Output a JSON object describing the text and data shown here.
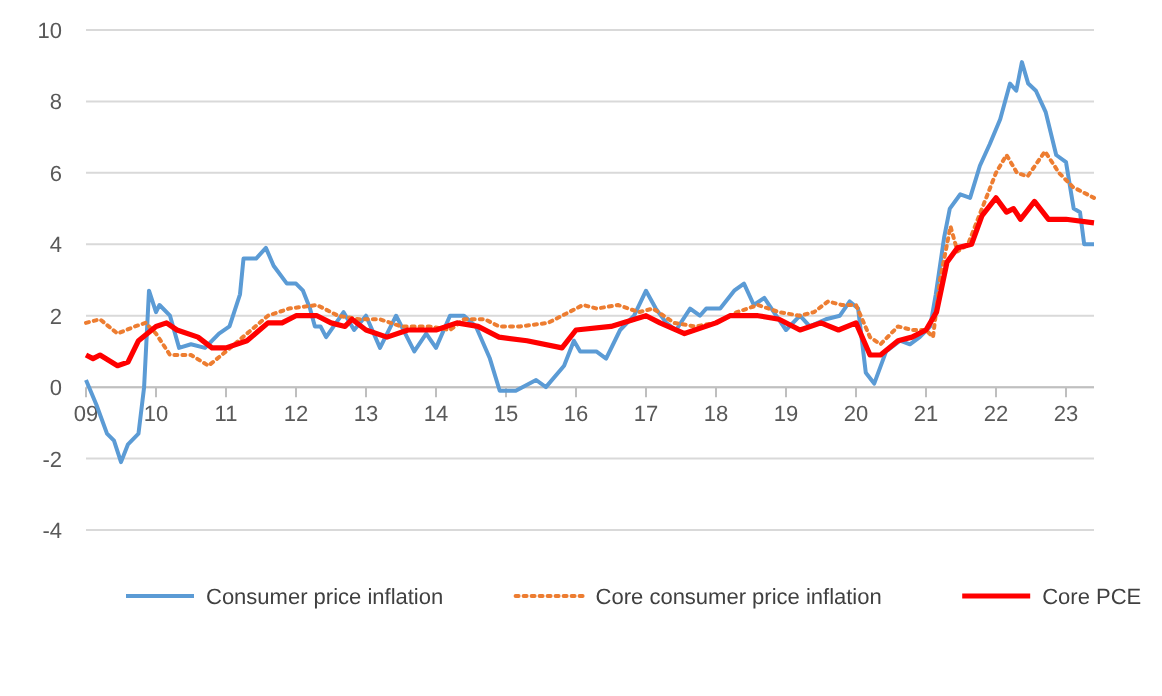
{
  "chart_data": {
    "type": "line",
    "xlim": [
      2009,
      2023.4
    ],
    "xticks": [
      {
        "value": 2009,
        "label": "09"
      },
      {
        "value": 2010,
        "label": "10"
      },
      {
        "value": 2011,
        "label": "11"
      },
      {
        "value": 2012,
        "label": "12"
      },
      {
        "value": 2013,
        "label": "13"
      },
      {
        "value": 2014,
        "label": "14"
      },
      {
        "value": 2015,
        "label": "15"
      },
      {
        "value": 2016,
        "label": "16"
      },
      {
        "value": 2017,
        "label": "17"
      },
      {
        "value": 2018,
        "label": "18"
      },
      {
        "value": 2019,
        "label": "19"
      },
      {
        "value": 2020,
        "label": "20"
      },
      {
        "value": 2021,
        "label": "21"
      },
      {
        "value": 2022,
        "label": "22"
      },
      {
        "value": 2023,
        "label": "23"
      }
    ],
    "ylim": [
      -4,
      10
    ],
    "yticks": [
      -4,
      -2,
      0,
      2,
      4,
      6,
      8,
      10
    ],
    "grid": "y",
    "legend": "bottom",
    "series": [
      {
        "name": "Consumer price inflation",
        "color": "#5b9bd5",
        "line_style": "solid",
        "x": [
          2009,
          2009.15,
          2009.3,
          2009.4,
          2009.5,
          2009.6,
          2009.75,
          2009.83,
          2009.9,
          2010,
          2010.05,
          2010.2,
          2010.33,
          2010.5,
          2010.7,
          2010.9,
          2011.05,
          2011.2,
          2011.25,
          2011.43,
          2011.57,
          2011.68,
          2011.87,
          2012,
          2012.1,
          2012.2,
          2012.27,
          2012.35,
          2012.43,
          2012.68,
          2012.83,
          2013,
          2013.2,
          2013.43,
          2013.69,
          2013.86,
          2014,
          2014.2,
          2014.4,
          2014.57,
          2014.77,
          2014.91,
          2015.14,
          2015.43,
          2015.57,
          2015.83,
          2015.97,
          2016.06,
          2016.29,
          2016.43,
          2016.63,
          2016.83,
          2017,
          2017.14,
          2017.29,
          2017.43,
          2017.63,
          2017.77,
          2017.86,
          2018.06,
          2018.26,
          2018.4,
          2018.54,
          2018.69,
          2018.86,
          2019,
          2019.2,
          2019.34,
          2019.57,
          2019.77,
          2019.91,
          2020.03,
          2020.14,
          2020.26,
          2020.43,
          2020.63,
          2020.77,
          2020.91,
          2021.06,
          2021.14,
          2021.26,
          2021.34,
          2021.49,
          2021.63,
          2021.77,
          2021.91,
          2022.06,
          2022.2,
          2022.29,
          2022.37,
          2022.46,
          2022.57,
          2022.71,
          2022.86,
          2023,
          2023.11,
          2023.2,
          2023.26,
          2023.4
        ],
        "values": [
          0.2,
          -0.5,
          -1.3,
          -1.5,
          -2.1,
          -1.6,
          -1.3,
          0,
          2.7,
          2.1,
          2.3,
          2,
          1.1,
          1.2,
          1.1,
          1.5,
          1.7,
          2.6,
          3.6,
          3.6,
          3.9,
          3.4,
          2.9,
          2.9,
          2.7,
          2.2,
          1.7,
          1.7,
          1.4,
          2.1,
          1.6,
          2,
          1.1,
          2,
          1,
          1.5,
          1.1,
          2,
          2,
          1.7,
          0.8,
          -0.1,
          -0.1,
          0.2,
          0,
          0.6,
          1.3,
          1,
          1,
          0.8,
          1.6,
          2,
          2.7,
          2.2,
          1.8,
          1.6,
          2.2,
          2,
          2.2,
          2.2,
          2.7,
          2.9,
          2.3,
          2.5,
          2,
          1.6,
          2,
          1.7,
          1.9,
          2,
          2.4,
          2.2,
          0.4,
          0.1,
          1,
          1.3,
          1.2,
          1.4,
          1.7,
          2.6,
          4.2,
          5,
          5.4,
          5.3,
          6.2,
          6.8,
          7.5,
          8.5,
          8.3,
          9.1,
          8.5,
          8.3,
          7.7,
          6.5,
          6.3,
          5,
          4.9,
          4,
          4
        ]
      },
      {
        "name": "Core consumer price inflation",
        "color": "#ed7d31",
        "line_style": "dotted",
        "x": [
          2009,
          2009.2,
          2009.45,
          2009.7,
          2009.85,
          2010,
          2010.2,
          2010.5,
          2010.75,
          2011,
          2011.3,
          2011.6,
          2011.9,
          2012.3,
          2012.6,
          2012.9,
          2013.2,
          2013.5,
          2013.9,
          2014.2,
          2014.4,
          2014.7,
          2014.9,
          2015.2,
          2015.6,
          2015.9,
          2016.1,
          2016.3,
          2016.6,
          2016.9,
          2017.1,
          2017.4,
          2017.7,
          2018,
          2018.3,
          2018.6,
          2018.9,
          2019.2,
          2019.4,
          2019.6,
          2019.8,
          2020,
          2020.2,
          2020.35,
          2020.6,
          2020.8,
          2021,
          2021.1,
          2021.2,
          2021.35,
          2021.45,
          2021.6,
          2021.8,
          2022,
          2022.15,
          2022.3,
          2022.45,
          2022.7,
          2022.9,
          2023.1,
          2023.4
        ],
        "values": [
          1.8,
          1.9,
          1.5,
          1.7,
          1.8,
          1.5,
          0.9,
          0.9,
          0.6,
          1,
          1.5,
          2,
          2.2,
          2.3,
          2,
          1.9,
          1.9,
          1.7,
          1.7,
          1.6,
          1.9,
          1.9,
          1.7,
          1.7,
          1.8,
          2.1,
          2.3,
          2.2,
          2.3,
          2.1,
          2.2,
          1.8,
          1.7,
          1.8,
          2.1,
          2.3,
          2.1,
          2,
          2.1,
          2.4,
          2.3,
          2.3,
          1.4,
          1.2,
          1.7,
          1.6,
          1.6,
          1.4,
          3,
          4.5,
          3.8,
          4,
          5,
          6,
          6.5,
          6,
          5.9,
          6.6,
          6,
          5.6,
          5.3
        ]
      },
      {
        "name": "Core PCE",
        "color": "#ff0000",
        "line_style": "solid",
        "x": [
          2009,
          2009.1,
          2009.2,
          2009.45,
          2009.6,
          2009.75,
          2010,
          2010.15,
          2010.3,
          2010.6,
          2010.8,
          2011,
          2011.3,
          2011.6,
          2011.8,
          2012,
          2012.3,
          2012.5,
          2012.7,
          2012.8,
          2013,
          2013.3,
          2013.6,
          2014,
          2014.3,
          2014.6,
          2014.9,
          2015.3,
          2015.8,
          2016,
          2016.5,
          2017,
          2017.2,
          2017.55,
          2018,
          2018.2,
          2018.6,
          2018.9,
          2019.2,
          2019.5,
          2019.75,
          2020,
          2020.2,
          2020.35,
          2020.6,
          2020.8,
          2021,
          2021.15,
          2021.3,
          2021.45,
          2021.65,
          2021.8,
          2022,
          2022.15,
          2022.25,
          2022.35,
          2022.55,
          2022.75,
          2023,
          2023.4
        ],
        "values": [
          0.9,
          0.8,
          0.9,
          0.6,
          0.7,
          1.3,
          1.7,
          1.8,
          1.6,
          1.4,
          1.1,
          1.1,
          1.3,
          1.8,
          1.8,
          2,
          2,
          1.8,
          1.7,
          1.9,
          1.6,
          1.4,
          1.6,
          1.6,
          1.8,
          1.7,
          1.4,
          1.3,
          1.1,
          1.6,
          1.7,
          2,
          1.8,
          1.5,
          1.8,
          2,
          2,
          1.9,
          1.6,
          1.8,
          1.6,
          1.8,
          0.9,
          0.9,
          1.3,
          1.4,
          1.6,
          2.1,
          3.5,
          3.9,
          4,
          4.8,
          5.3,
          4.9,
          5,
          4.7,
          5.2,
          4.7,
          4.7,
          4.6
        ]
      }
    ]
  }
}
